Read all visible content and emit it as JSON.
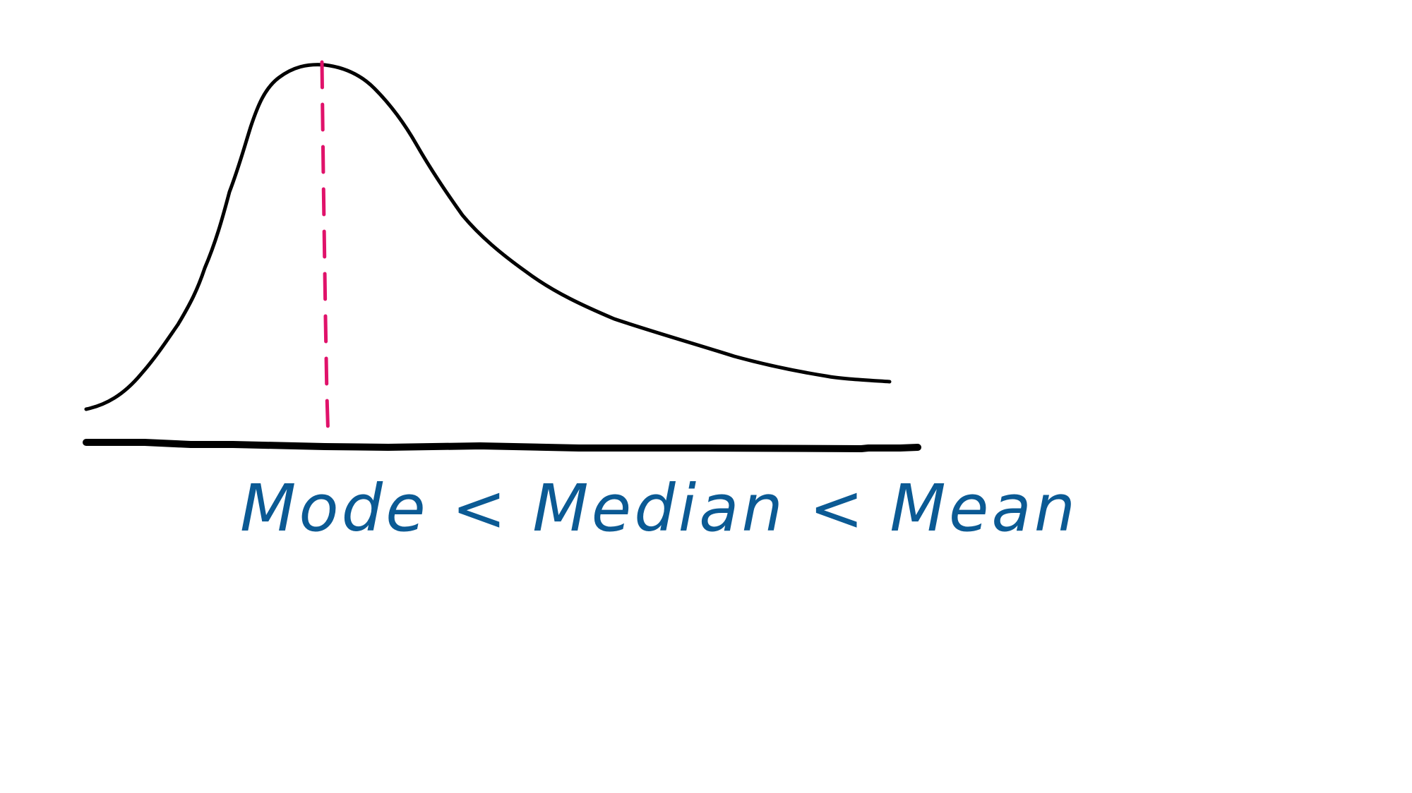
{
  "diagram": {
    "caption": "Mode < Median < Mean",
    "colors": {
      "background": "#ffffff",
      "curve": "#000000",
      "axis": "#000000",
      "mode_line": "#e0126a",
      "caption": "#0b5a94"
    }
  }
}
